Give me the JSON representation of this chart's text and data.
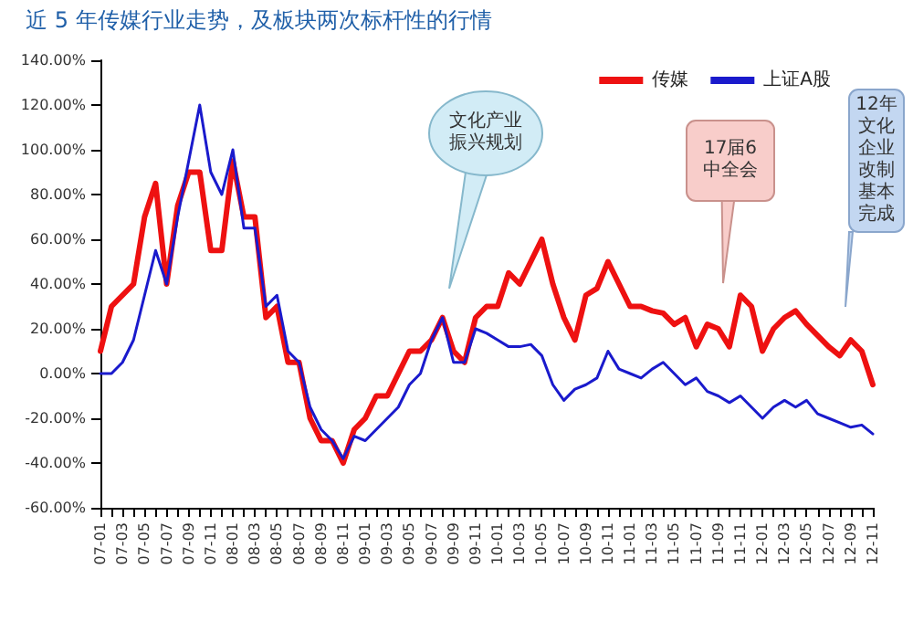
{
  "chart_data": {
    "type": "line",
    "title": "近 5 年传媒行业走势，及板块两次标杆性的行情",
    "categories": [
      "07-01",
      null,
      "07-03",
      null,
      "07-05",
      null,
      "07-07",
      null,
      "07-09",
      null,
      "07-11",
      null,
      "08-01",
      null,
      "08-03",
      null,
      "08-05",
      null,
      "08-07",
      null,
      "08-09",
      null,
      "08-11",
      null,
      "09-01",
      null,
      "09-03",
      null,
      "09-05",
      null,
      "09-07",
      null,
      "09-09",
      null,
      "09-11",
      null,
      "10-01",
      null,
      "10-03",
      null,
      "10-05",
      null,
      "10-07",
      null,
      "10-09",
      null,
      "10-11",
      null,
      "11-01",
      null,
      "11-03",
      null,
      "11-05",
      null,
      "11-07",
      null,
      "11-09",
      null,
      "11-11",
      null,
      "12-01",
      null,
      "12-03",
      null,
      "12-05",
      null,
      "12-07",
      null,
      "12-09",
      null,
      "12-11"
    ],
    "series": [
      {
        "name": "传媒",
        "color": "#ee1111",
        "values": [
          10,
          30,
          35,
          40,
          70,
          85,
          40,
          75,
          90,
          90,
          55,
          55,
          95,
          70,
          70,
          25,
          30,
          5,
          5,
          -20,
          -30,
          -30,
          -40,
          -25,
          -20,
          -10,
          -10,
          0,
          10,
          10,
          15,
          25,
          10,
          5,
          25,
          30,
          30,
          45,
          40,
          50,
          60,
          40,
          25,
          15,
          35,
          38,
          50,
          40,
          30,
          30,
          28,
          27,
          22,
          25,
          12,
          22,
          20,
          12,
          35,
          30,
          10,
          20,
          25,
          28,
          22,
          17,
          12,
          8,
          15,
          10,
          -5
        ]
      },
      {
        "name": "上证A股",
        "color": "#1a1acc",
        "values": [
          0,
          0,
          5,
          15,
          35,
          55,
          40,
          70,
          95,
          120,
          90,
          80,
          100,
          65,
          65,
          30,
          35,
          10,
          5,
          -15,
          -25,
          -30,
          -38,
          -28,
          -30,
          -25,
          -20,
          -15,
          -5,
          0,
          15,
          25,
          5,
          5,
          20,
          18,
          15,
          12,
          12,
          13,
          8,
          -5,
          -12,
          -7,
          -5,
          -2,
          10,
          2,
          0,
          -2,
          2,
          5,
          0,
          -5,
          -2,
          -8,
          -10,
          -13,
          -10,
          -15,
          -20,
          -15,
          -12,
          -15,
          -12,
          -18,
          -20,
          -22,
          -24,
          -23,
          -27
        ]
      }
    ],
    "ylim": [
      -60,
      140
    ],
    "yticks": [
      {
        "value": -60,
        "label": "-60.00%"
      },
      {
        "value": -40,
        "label": "-40.00%"
      },
      {
        "value": -20,
        "label": "-20.00%"
      },
      {
        "value": 0,
        "label": "0.00%"
      },
      {
        "value": 20,
        "label": "20.00%"
      },
      {
        "value": 40,
        "label": "40.00%"
      },
      {
        "value": 60,
        "label": "60.00%"
      },
      {
        "value": 80,
        "label": "80.00%"
      },
      {
        "value": 100,
        "label": "100.00%"
      },
      {
        "value": 120,
        "label": "120.00%"
      },
      {
        "value": 140,
        "label": "140.00%"
      }
    ],
    "annotations": [
      "文化产业振兴规划",
      "17届6中全会",
      "12年文化企业改制基本完成"
    ],
    "grid": false,
    "legend": "top right",
    "marker": "none",
    "line_style": "solid"
  }
}
